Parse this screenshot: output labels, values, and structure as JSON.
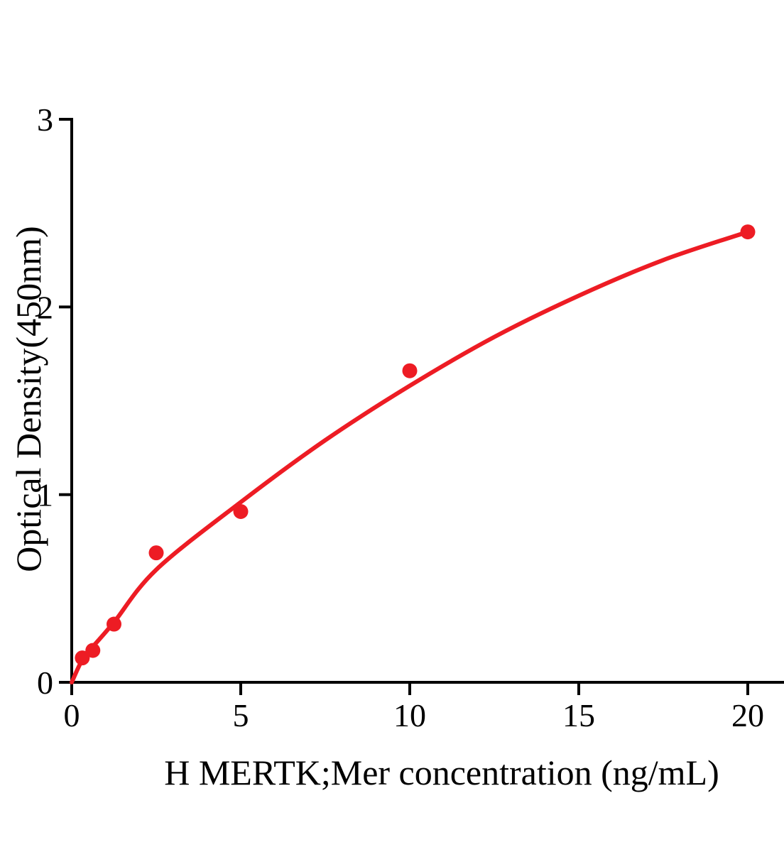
{
  "figure": {
    "background": "#ffffff"
  },
  "chart_data": {
    "type": "scatter",
    "title": "",
    "xlabel": "H MERTK;Mer concentration (ng/mL)",
    "ylabel": "Optical Density(450nm)",
    "x_ticks": [
      0,
      5,
      10,
      15,
      20
    ],
    "y_ticks": [
      0,
      1,
      2,
      3
    ],
    "xlim": [
      0,
      21.1
    ],
    "ylim": [
      0,
      3
    ],
    "grid": false,
    "legend": "none",
    "accent_color": "#ED1C24",
    "axis_color": "#000000",
    "series": [
      {
        "name": "standard-data-points",
        "type": "scatter",
        "x": [
          0.3125,
          0.625,
          1.25,
          2.5,
          5,
          10,
          20
        ],
        "y": [
          0.13,
          0.17,
          0.31,
          0.69,
          0.91,
          1.66,
          2.4
        ]
      },
      {
        "name": "fitted-curve",
        "type": "line",
        "x": [
          0,
          0.3125,
          0.625,
          1.25,
          2.5,
          5,
          7.5,
          10,
          12.5,
          15,
          17.5,
          20
        ],
        "y": [
          0,
          0.12,
          0.19,
          0.32,
          0.6,
          0.96,
          1.29,
          1.58,
          1.84,
          2.06,
          2.25,
          2.4
        ]
      }
    ]
  }
}
